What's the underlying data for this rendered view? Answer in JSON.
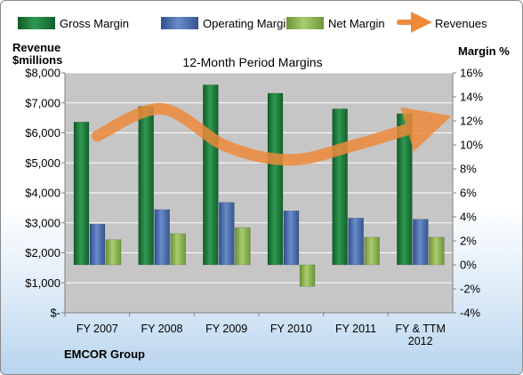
{
  "chart_data": {
    "type": "bar",
    "title": "12-Month Period Margins",
    "company": "EMCOR Group",
    "left_axis_title": [
      "Revenue",
      "$millions"
    ],
    "right_axis_title": "Margin %",
    "categories": [
      [
        "FY 2007"
      ],
      [
        "FY 2008"
      ],
      [
        "FY 2009"
      ],
      [
        "FY 2010"
      ],
      [
        "FY 2011"
      ],
      [
        "FY & TTM",
        "2012"
      ]
    ],
    "left_axis": {
      "min": 0,
      "max": 8000,
      "step": 1000,
      "tick_labels": [
        "$-",
        "$1,000",
        "$2,000",
        "$3,000",
        "$4,000",
        "$5,000",
        "$6,000",
        "$7,000",
        "$8,000"
      ]
    },
    "right_axis": {
      "min": -4,
      "max": 16,
      "step": 2,
      "tick_labels": [
        "-4%",
        "-2%",
        "0%",
        "2%",
        "4%",
        "6%",
        "8%",
        "10%",
        "12%",
        "14%",
        "16%"
      ]
    },
    "series": [
      {
        "name": "Gross Margin",
        "axis": "right",
        "kind": "bar",
        "color": "#1f7a3c",
        "values": [
          11.9,
          13.2,
          15.0,
          14.3,
          13.0,
          12.6
        ]
      },
      {
        "name": "Operating Margin",
        "axis": "right",
        "kind": "bar",
        "color": "#4a6db0",
        "values": [
          3.4,
          4.6,
          5.2,
          4.5,
          3.9,
          3.8
        ]
      },
      {
        "name": "Net Margin",
        "axis": "right",
        "kind": "bar",
        "color": "#8db552",
        "values": [
          2.1,
          2.6,
          3.1,
          -1.8,
          2.3,
          2.3
        ]
      },
      {
        "name": "Revenues",
        "axis": "left",
        "kind": "line",
        "color": "#ed8a3a",
        "values": [
          5900,
          6800,
          5550,
          5100,
          5600,
          6250
        ]
      }
    ],
    "grid": true,
    "legend_position": "top"
  },
  "colors": {
    "plot_bg": "#c6c6c6",
    "grid": "#ffffff",
    "axis": "#7f7f7f"
  }
}
